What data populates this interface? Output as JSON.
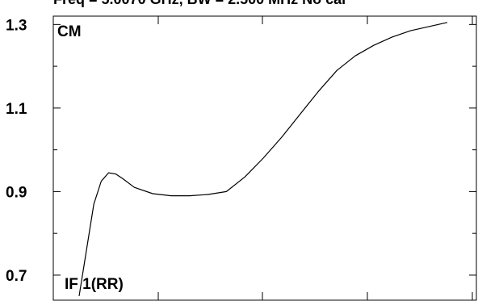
{
  "title": "Freq = 5.0070 GHz, BW = 2.500 MHz No cal",
  "chart_data": {
    "type": "line",
    "title": "Freq = 5.0070 GHz, BW = 2.500 MHz No cal",
    "xlabel": "",
    "ylabel": "",
    "ylim": [
      0.64,
      1.32
    ],
    "yticks": [
      0.7,
      0.9,
      1.1,
      1.3
    ],
    "ytick_labels": [
      "0.7",
      "0.9",
      "1.1",
      "1.3"
    ],
    "annotations": [
      "CM",
      "IF 1(RR)"
    ],
    "grid": false,
    "series": [
      {
        "x": [
          0,
          0.02,
          0.04,
          0.06,
          0.08,
          0.1,
          0.12,
          0.15,
          0.2,
          0.25,
          0.3,
          0.35,
          0.4,
          0.45,
          0.5,
          0.55,
          0.6,
          0.65,
          0.7,
          0.75,
          0.8,
          0.85,
          0.9,
          0.95,
          1.0
        ],
        "values": [
          0.65,
          0.76,
          0.87,
          0.925,
          0.945,
          0.942,
          0.93,
          0.91,
          0.895,
          0.89,
          0.89,
          0.893,
          0.9,
          0.935,
          0.98,
          1.03,
          1.085,
          1.14,
          1.19,
          1.225,
          1.25,
          1.27,
          1.285,
          1.295,
          1.305
        ],
        "color": "#000000"
      }
    ]
  }
}
